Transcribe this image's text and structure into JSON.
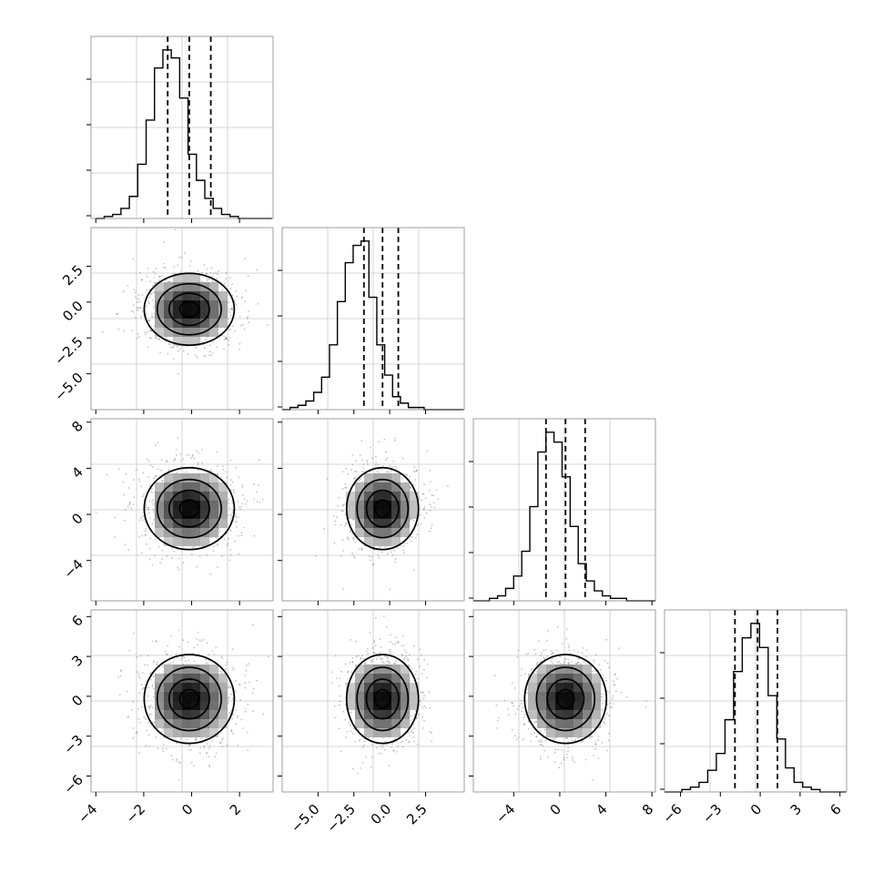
{
  "chart_data": {
    "type": "corner",
    "n_params": 4,
    "axis_ticks": [
      {
        "values": [
          -4,
          -2,
          0,
          2
        ],
        "labels": [
          "−4",
          "−2",
          "0",
          "2"
        ],
        "range": [
          -4.2,
          3.4
        ]
      },
      {
        "values": [
          -5.0,
          -2.5,
          0.0,
          2.5
        ],
        "labels": [
          "−5.0",
          "−2.5",
          "0.0",
          "2.5"
        ],
        "range": [
          -7.5,
          5.2
        ]
      },
      {
        "values": [
          -4,
          0,
          4,
          8
        ],
        "labels": [
          "−4",
          "0",
          "4",
          "8"
        ],
        "range": [
          -7.5,
          8.3
        ]
      },
      {
        "values": [
          -6,
          -3,
          0,
          3,
          6
        ],
        "labels": [
          "−6",
          "−3",
          "0",
          "3",
          "6"
        ],
        "range": [
          -7.2,
          6.5
        ]
      }
    ],
    "histograms": [
      {
        "bin_start": -4.0,
        "bin_width": 0.35,
        "counts": [
          0,
          1,
          2,
          5,
          11,
          27,
          49,
          75,
          84,
          80,
          60,
          32,
          19,
          10,
          5,
          2,
          1,
          0,
          0,
          0,
          0
        ],
        "quantiles": [
          -1.0,
          -0.1,
          0.8
        ]
      },
      {
        "bin_start": -7.5,
        "bin_width": 0.55,
        "counts": [
          0,
          1,
          2,
          4,
          8,
          15,
          30,
          50,
          68,
          76,
          78,
          52,
          30,
          16,
          6,
          3,
          1,
          1,
          0,
          0,
          0,
          0,
          0
        ],
        "quantiles": [
          -1.8,
          -0.5,
          0.6
        ]
      },
      {
        "bin_start": -7.5,
        "bin_width": 0.7,
        "counts": [
          0,
          0,
          1,
          2,
          5,
          10,
          20,
          38,
          60,
          68,
          64,
          50,
          30,
          15,
          8,
          4,
          2,
          1,
          1,
          0,
          0,
          0,
          0
        ],
        "quantiles": [
          -1.2,
          0.5,
          2.2
        ]
      },
      {
        "bin_start": -7.2,
        "bin_width": 0.65,
        "counts": [
          0,
          0,
          1,
          2,
          4,
          9,
          16,
          30,
          50,
          64,
          70,
          60,
          40,
          22,
          10,
          4,
          2,
          1,
          0,
          0,
          0
        ],
        "quantiles": [
          -1.9,
          -0.2,
          1.3
        ]
      }
    ],
    "grid": true,
    "scatter_color": "#555555",
    "line_color": "#000000"
  }
}
